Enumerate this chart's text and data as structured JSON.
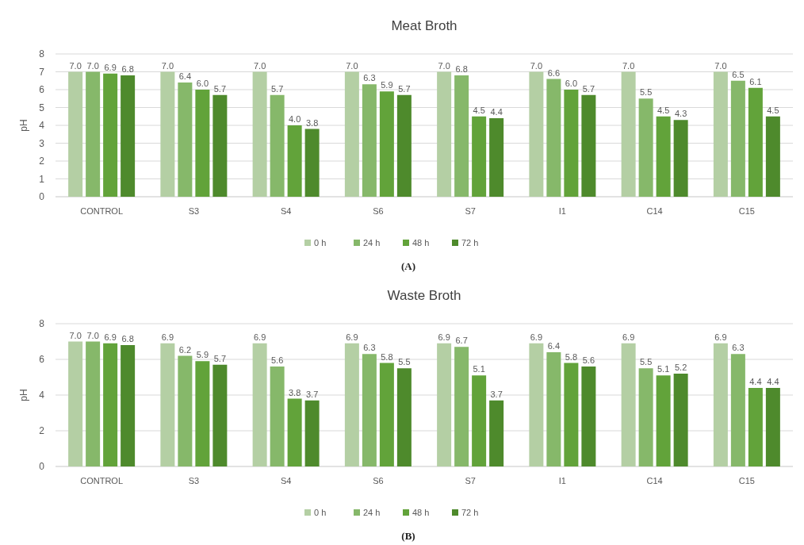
{
  "chart_data": [
    {
      "type": "bar",
      "title": "Meat Broth",
      "ylabel": "pH",
      "categories": [
        "CONTROL",
        "S3",
        "S4",
        "S6",
        "S7",
        "I1",
        "C14",
        "C15"
      ],
      "series": [
        {
          "name": "0 h",
          "color": "#b4cfa4",
          "values": [
            7.0,
            7.0,
            7.0,
            7.0,
            7.0,
            7.0,
            7.0,
            7.0
          ],
          "value_labels": [
            "7.0",
            "7.0",
            "7.0",
            "7.0",
            "7.0",
            "7.0",
            "7.0",
            "7.0"
          ]
        },
        {
          "name": "24 h",
          "color": "#86b86a",
          "values": [
            7.0,
            6.4,
            5.7,
            6.3,
            6.8,
            6.6,
            5.5,
            6.5
          ],
          "value_labels": [
            "7.0",
            "6.4",
            "5.7",
            "6.3",
            "6.8",
            "6.6",
            "5.5",
            "6.5"
          ]
        },
        {
          "name": "48 h",
          "color": "#62a33a",
          "values": [
            6.9,
            6.0,
            4.0,
            5.9,
            4.5,
            6.0,
            4.5,
            6.1
          ],
          "value_labels": [
            "6.9",
            "6.0",
            "4.0",
            "5.9",
            "4.5",
            "6.0",
            "4.5",
            "6.1"
          ]
        },
        {
          "name": "72 h",
          "color": "#4e8a2c",
          "values": [
            6.8,
            5.7,
            3.8,
            5.7,
            4.4,
            5.7,
            4.3,
            4.5
          ],
          "value_labels": [
            "6.8",
            "5.7",
            "3.8",
            "5.7",
            "4.4",
            "5.7",
            "4.3",
            "4.5"
          ]
        }
      ],
      "ylim": [
        0,
        8
      ],
      "yticks": [
        0,
        1,
        2,
        3,
        4,
        5,
        6,
        7,
        8
      ],
      "grid": "y",
      "legend": "bottom",
      "annotations": [
        "(A)"
      ]
    },
    {
      "type": "bar",
      "title": "Waste Broth",
      "ylabel": "pH",
      "categories": [
        "CONTROL",
        "S3",
        "S4",
        "S6",
        "S7",
        "I1",
        "C14",
        "C15"
      ],
      "series": [
        {
          "name": "0 h",
          "color": "#b4cfa4",
          "values": [
            7.0,
            6.9,
            6.9,
            6.9,
            6.9,
            6.9,
            6.9,
            6.9
          ],
          "value_labels": [
            "7.0",
            "6.9",
            "6.9",
            "6.9",
            "6.9",
            "6.9",
            "6.9",
            "6.9"
          ]
        },
        {
          "name": "24 h",
          "color": "#86b86a",
          "values": [
            7.0,
            6.2,
            5.6,
            6.3,
            6.7,
            6.4,
            5.5,
            6.3
          ],
          "value_labels": [
            "7.0",
            "6.2",
            "5.6",
            "6.3",
            "6.7",
            "6.4",
            "5.5",
            "6.3"
          ]
        },
        {
          "name": "48 h",
          "color": "#62a33a",
          "values": [
            6.9,
            5.9,
            3.8,
            5.8,
            5.1,
            5.8,
            5.1,
            4.4
          ],
          "value_labels": [
            "6.9",
            "5.9",
            "3.8",
            "5.8",
            "5.1",
            "5.8",
            "5.1",
            "4.4"
          ]
        },
        {
          "name": "72 h",
          "color": "#4e8a2c",
          "values": [
            6.8,
            5.7,
            3.7,
            5.5,
            3.7,
            5.6,
            5.2,
            4.4
          ],
          "value_labels": [
            "6.8",
            "5.7",
            "3.7",
            "5.5",
            "3.7",
            "5.6",
            "5.2",
            "4.4"
          ]
        }
      ],
      "ylim": [
        0,
        8
      ],
      "yticks": [
        0,
        2,
        4,
        6,
        8
      ],
      "grid": "y",
      "legend": "bottom",
      "annotations": [
        "(B)"
      ]
    }
  ]
}
